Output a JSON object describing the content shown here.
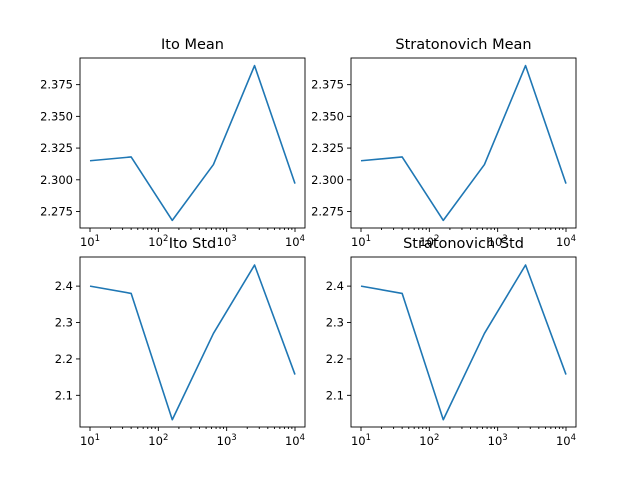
{
  "figure": {
    "background": "#ffffff"
  },
  "chart_data": [
    {
      "type": "line",
      "title": "Ito Mean",
      "xscale": "log",
      "xlim": [
        10,
        10000
      ],
      "ylim": [
        2.262,
        2.396
      ],
      "x": [
        10,
        40,
        160,
        640,
        2560,
        10000
      ],
      "series": [
        {
          "values": [
            2.315,
            2.318,
            2.268,
            2.312,
            2.39,
            2.297
          ],
          "color": "#1f77b4"
        }
      ],
      "xticks": [
        {
          "value": 10,
          "base": "10",
          "exp": "1"
        },
        {
          "value": 100,
          "base": "10",
          "exp": "2"
        },
        {
          "value": 1000,
          "base": "10",
          "exp": "3"
        },
        {
          "value": 10000,
          "base": "10",
          "exp": "4"
        }
      ],
      "yticks": [
        {
          "value": 2.275,
          "label": "2.275"
        },
        {
          "value": 2.3,
          "label": "2.300"
        },
        {
          "value": 2.325,
          "label": "2.325"
        },
        {
          "value": 2.35,
          "label": "2.350"
        },
        {
          "value": 2.375,
          "label": "2.375"
        }
      ],
      "grid": false
    },
    {
      "type": "line",
      "title": "Stratonovich Mean",
      "xscale": "log",
      "xlim": [
        10,
        10000
      ],
      "ylim": [
        2.262,
        2.396
      ],
      "x": [
        10,
        40,
        160,
        640,
        2560,
        10000
      ],
      "series": [
        {
          "values": [
            2.315,
            2.318,
            2.268,
            2.312,
            2.39,
            2.297
          ],
          "color": "#1f77b4"
        }
      ],
      "xticks": [
        {
          "value": 10,
          "base": "10",
          "exp": "1"
        },
        {
          "value": 100,
          "base": "10",
          "exp": "2"
        },
        {
          "value": 1000,
          "base": "10",
          "exp": "3"
        },
        {
          "value": 10000,
          "base": "10",
          "exp": "4"
        }
      ],
      "yticks": [
        {
          "value": 2.275,
          "label": "2.275"
        },
        {
          "value": 2.3,
          "label": "2.300"
        },
        {
          "value": 2.325,
          "label": "2.325"
        },
        {
          "value": 2.35,
          "label": "2.350"
        },
        {
          "value": 2.375,
          "label": "2.375"
        }
      ],
      "grid": false
    },
    {
      "type": "line",
      "title": "Ito Std",
      "xscale": "log",
      "xlim": [
        10,
        10000
      ],
      "ylim": [
        2.013,
        2.48
      ],
      "x": [
        10,
        40,
        160,
        640,
        2560,
        10000
      ],
      "series": [
        {
          "values": [
            2.4,
            2.38,
            2.033,
            2.27,
            2.458,
            2.157
          ],
          "color": "#1f77b4"
        }
      ],
      "xticks": [
        {
          "value": 10,
          "base": "10",
          "exp": "1"
        },
        {
          "value": 100,
          "base": "10",
          "exp": "2"
        },
        {
          "value": 1000,
          "base": "10",
          "exp": "3"
        },
        {
          "value": 10000,
          "base": "10",
          "exp": "4"
        }
      ],
      "yticks": [
        {
          "value": 2.1,
          "label": "2.1"
        },
        {
          "value": 2.2,
          "label": "2.2"
        },
        {
          "value": 2.3,
          "label": "2.3"
        },
        {
          "value": 2.4,
          "label": "2.4"
        }
      ],
      "grid": false
    },
    {
      "type": "line",
      "title": "Stratonovich Std",
      "xscale": "log",
      "xlim": [
        10,
        10000
      ],
      "ylim": [
        2.013,
        2.48
      ],
      "x": [
        10,
        40,
        160,
        640,
        2560,
        10000
      ],
      "series": [
        {
          "values": [
            2.4,
            2.38,
            2.033,
            2.27,
            2.458,
            2.157
          ],
          "color": "#1f77b4"
        }
      ],
      "xticks": [
        {
          "value": 10,
          "base": "10",
          "exp": "1"
        },
        {
          "value": 100,
          "base": "10",
          "exp": "2"
        },
        {
          "value": 1000,
          "base": "10",
          "exp": "3"
        },
        {
          "value": 10000,
          "base": "10",
          "exp": "4"
        }
      ],
      "yticks": [
        {
          "value": 2.1,
          "label": "2.1"
        },
        {
          "value": 2.2,
          "label": "2.2"
        },
        {
          "value": 2.3,
          "label": "2.3"
        },
        {
          "value": 2.4,
          "label": "2.4"
        }
      ],
      "grid": false
    }
  ]
}
